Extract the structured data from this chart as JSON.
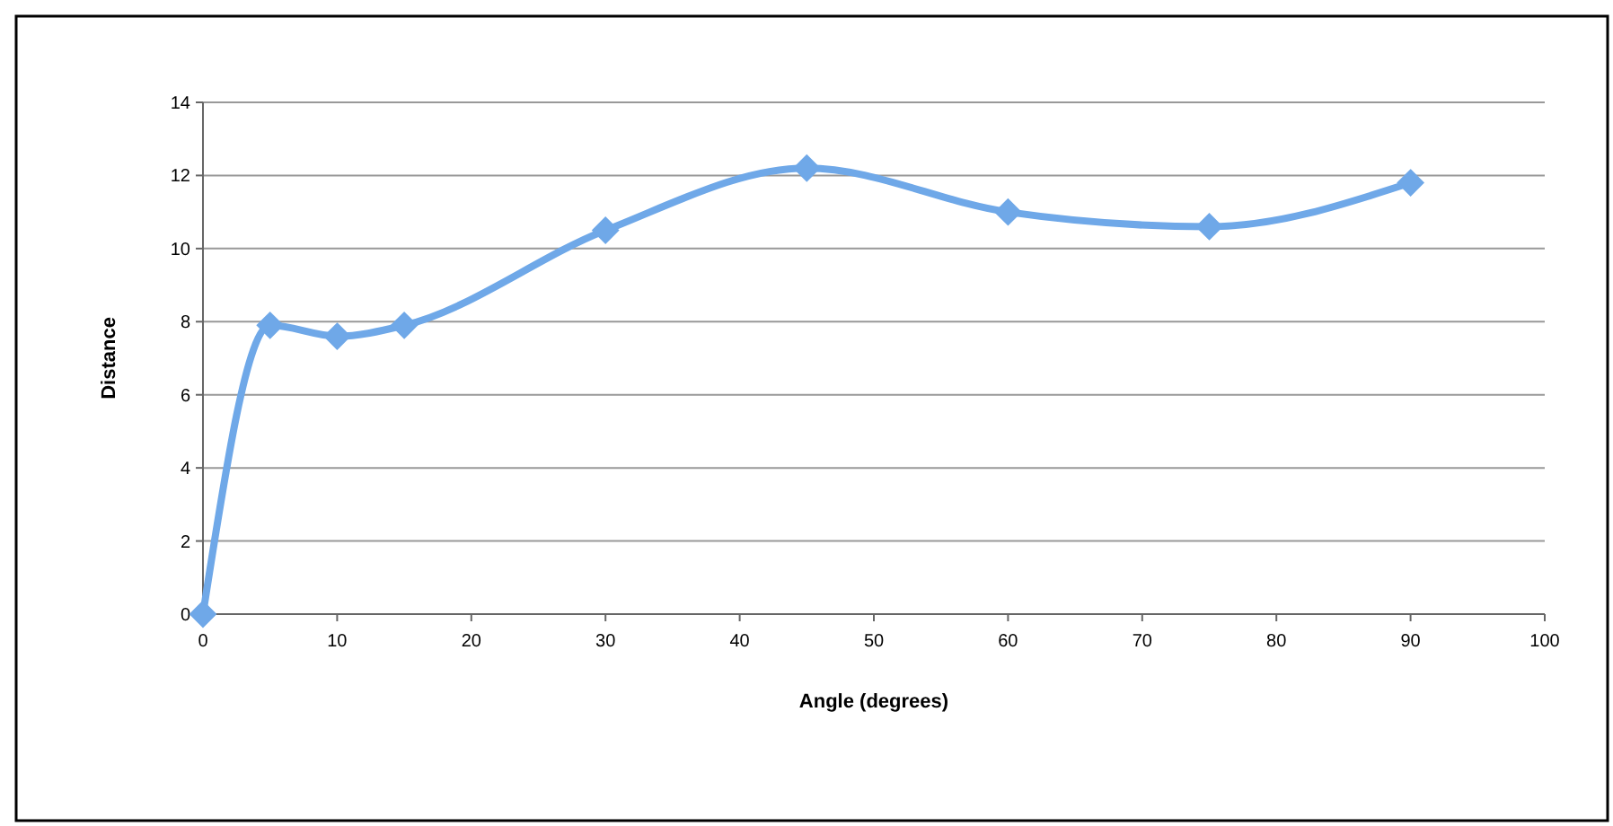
{
  "chart_data": {
    "type": "line",
    "xlabel": "Angle (degrees)",
    "ylabel": "Distance",
    "x": [
      0,
      5,
      10,
      15,
      30,
      45,
      60,
      75,
      90
    ],
    "series": [
      {
        "color": "#6fa8e8",
        "values": [
          0,
          7.9,
          7.6,
          7.9,
          10.5,
          12.2,
          11.0,
          10.6,
          11.8
        ]
      }
    ],
    "xlim": [
      0,
      100
    ],
    "xticks": [
      0,
      10,
      20,
      30,
      40,
      50,
      60,
      70,
      80,
      90,
      100
    ],
    "ylim": [
      0,
      14
    ],
    "yticks": [
      0,
      2,
      4,
      6,
      8,
      10,
      12,
      14
    ],
    "grid": "y",
    "marker": "diamond",
    "line_style": "solid"
  }
}
